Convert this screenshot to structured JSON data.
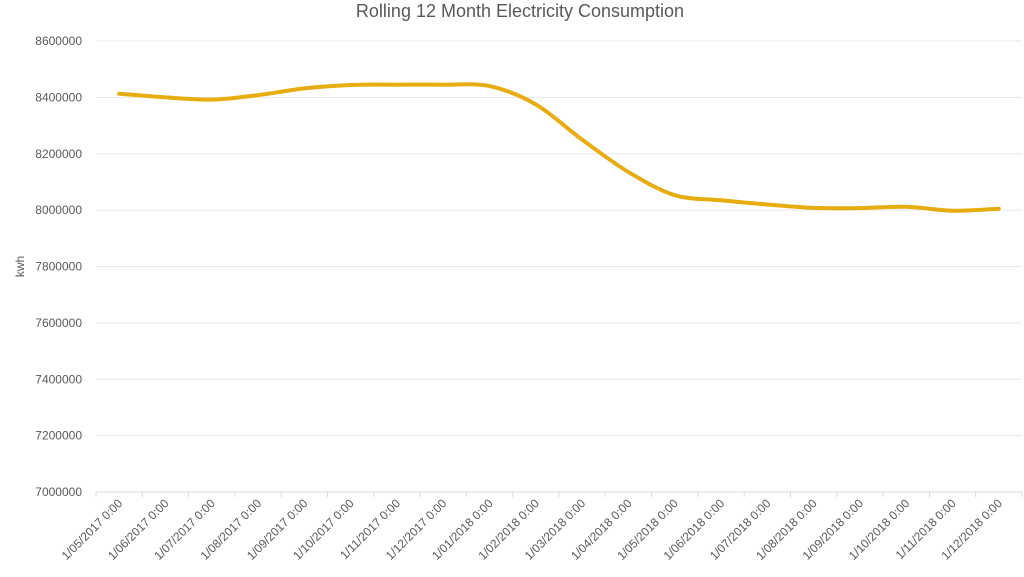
{
  "chart_data": {
    "type": "line",
    "title": "Rolling 12 Month Electricity Consumption",
    "xlabel": "",
    "ylabel": "kwh",
    "ylim": [
      7000000,
      8600000
    ],
    "yticks": [
      7000000,
      7200000,
      7400000,
      7600000,
      7800000,
      8000000,
      8200000,
      8400000,
      8600000
    ],
    "grid": true,
    "legend": "none",
    "categories": [
      "1/05/2017 0:00",
      "1/06/2017 0:00",
      "1/07/2017 0:00",
      "1/08/2017 0:00",
      "1/09/2017 0:00",
      "1/10/2017 0:00",
      "1/11/2017 0:00",
      "1/12/2017 0:00",
      "1/01/2018 0:00",
      "1/02/2018 0:00",
      "1/03/2018 0:00",
      "1/04/2018 0:00",
      "1/05/2018 0:00",
      "1/06/2018 0:00",
      "1/07/2018 0:00",
      "1/08/2018 0:00",
      "1/09/2018 0:00",
      "1/10/2018 0:00",
      "1/11/2018 0:00",
      "1/12/2018 0:00"
    ],
    "series": [
      {
        "color": "#E6AC10",
        "values": [
          8413000,
          8400000,
          8392000,
          8408000,
          8432000,
          8444000,
          8445000,
          8445000,
          8440000,
          8375000,
          8250000,
          8135000,
          8053000,
          8035000,
          8020000,
          8008000,
          8007000,
          8012000,
          7998000,
          8005000
        ]
      }
    ]
  }
}
